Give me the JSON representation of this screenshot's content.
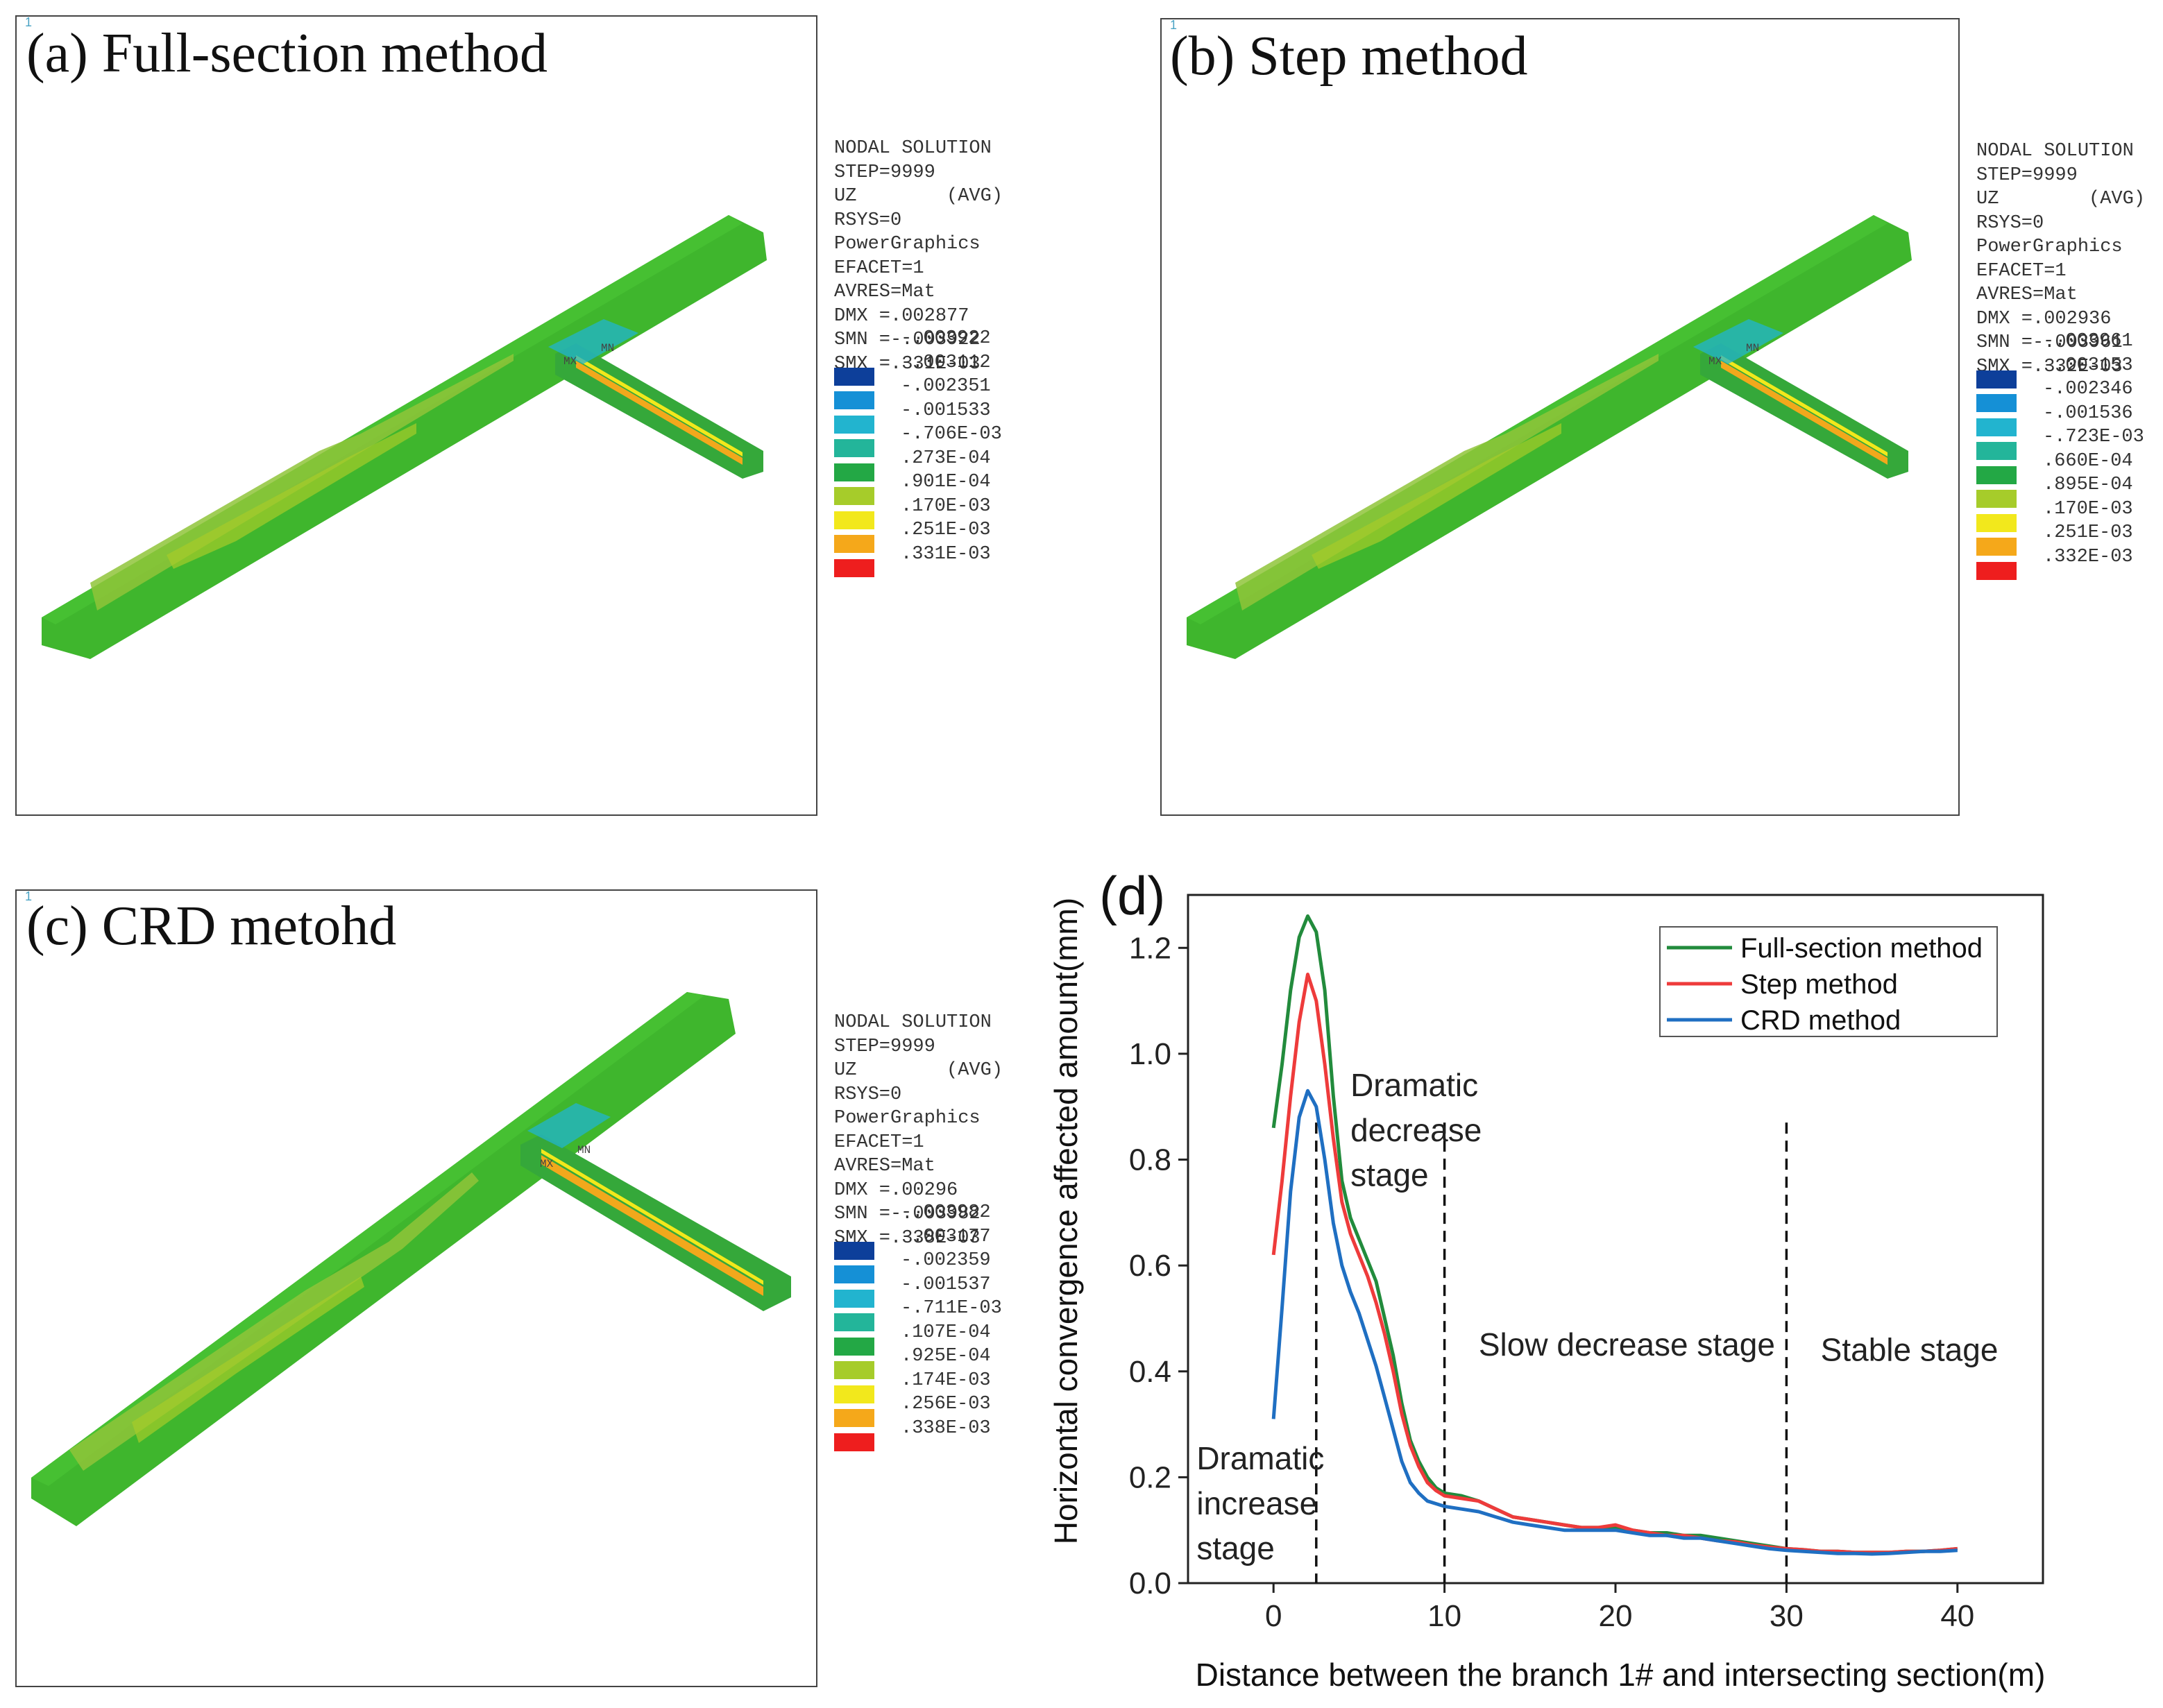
{
  "panels": [
    {
      "title": "(a) Full-section method",
      "legend": [
        "NODAL SOLUTION",
        "STEP=9999",
        "UZ        (AVG)",
        "RSYS=0",
        "PowerGraphics",
        "EFACET=1",
        "AVRES=Mat",
        "DMX =.002877",
        "SMN =-.003922",
        "SMX =.331E-03"
      ],
      "scale": [
        "-.003922",
        "-.003112",
        "-.002351",
        "-.001533",
        "-.706E-03",
        ".273E-04",
        ".901E-04",
        ".170E-03",
        ".251E-03",
        ".331E-03"
      ],
      "mx": "MX",
      "mn": "MN"
    },
    {
      "title": "(b) Step method",
      "legend": [
        "NODAL SOLUTION",
        "STEP=9999",
        "UZ        (AVG)",
        "RSYS=0",
        "PowerGraphics",
        "EFACET=1",
        "AVRES=Mat",
        "DMX =.002936",
        "SMN =-.003961",
        "SMX =.332E-03"
      ],
      "scale": [
        "-.003961",
        "-.003153",
        "-.002346",
        "-.001536",
        "-.723E-03",
        ".660E-04",
        ".895E-04",
        ".170E-03",
        ".251E-03",
        ".332E-03"
      ],
      "mx": "MX",
      "mn": "MN"
    },
    {
      "title": "(c) CRD metohd",
      "legend": [
        "NODAL SOLUTION",
        "STEP=9999",
        "UZ        (AVG)",
        "RSYS=0",
        "PowerGraphics",
        "EFACET=1",
        "AVRES=Mat",
        "DMX =.00296",
        "SMN =-.003982",
        "SMX =.338E-03"
      ],
      "scale": [
        "-.003982",
        "-.003177",
        "-.002359",
        "-.001537",
        "-.711E-03",
        ".107E-04",
        ".925E-04",
        ".174E-03",
        ".256E-03",
        ".338E-03"
      ],
      "mx": "MX",
      "mn": "MN"
    }
  ],
  "colors": {
    "contour": [
      "#0d3f9a",
      "#1590d6",
      "#22b4cf",
      "#23b59a",
      "#23a845",
      "#a6cc2a",
      "#f2e81c",
      "#f5a81a",
      "#ee1e1e"
    ],
    "model_main": "#3fb62d",
    "model_light": "#92c93e",
    "model_dark": "#2a8f23"
  },
  "corner_mark": "1",
  "chart_data": {
    "type": "line",
    "panel_label": "(d)",
    "xlabel": "Distance between the branch 1# and intersecting section(m)",
    "ylabel": "Horizontal convergence affected amount(mm)",
    "xlim": [
      -5,
      45
    ],
    "ylim": [
      0,
      1.3
    ],
    "xticks": [
      0,
      10,
      20,
      30,
      40
    ],
    "yticks": [
      0.0,
      0.2,
      0.4,
      0.6,
      0.8,
      1.0,
      1.2
    ],
    "xtick_labels": [
      "0",
      "10",
      "20",
      "30",
      "40"
    ],
    "ytick_labels": [
      "0.0",
      "0.2",
      "0.4",
      "0.6",
      "0.8",
      "1.0",
      "1.2"
    ],
    "series": [
      {
        "name": "Full-section method",
        "color": "#228b3c",
        "x": [
          0,
          0.5,
          1,
          1.5,
          2,
          2.5,
          3,
          3.5,
          4,
          4.5,
          5,
          5.5,
          6,
          6.5,
          7,
          7.5,
          8,
          8.5,
          9,
          9.5,
          10,
          11,
          12,
          13,
          14,
          15,
          16,
          17,
          18,
          19,
          20,
          21,
          22,
          23,
          24,
          25,
          26,
          27,
          28,
          29,
          30,
          31,
          32,
          33,
          34,
          35,
          36,
          37,
          38,
          39,
          40
        ],
        "y": [
          0.86,
          0.98,
          1.12,
          1.22,
          1.26,
          1.23,
          1.12,
          0.92,
          0.76,
          0.69,
          0.65,
          0.61,
          0.57,
          0.5,
          0.43,
          0.34,
          0.27,
          0.23,
          0.2,
          0.18,
          0.17,
          0.165,
          0.155,
          0.14,
          0.125,
          0.12,
          0.115,
          0.11,
          0.105,
          0.105,
          0.105,
          0.1,
          0.095,
          0.095,
          0.09,
          0.09,
          0.085,
          0.08,
          0.075,
          0.07,
          0.065,
          0.063,
          0.06,
          0.06,
          0.058,
          0.058,
          0.058,
          0.06,
          0.06,
          0.062,
          0.065
        ]
      },
      {
        "name": "Step method",
        "color": "#ee3b3b",
        "x": [
          0,
          0.5,
          1,
          1.5,
          2,
          2.5,
          3,
          3.5,
          4,
          4.5,
          5,
          5.5,
          6,
          6.5,
          7,
          7.5,
          8,
          8.5,
          9,
          9.5,
          10,
          11,
          12,
          13,
          14,
          15,
          16,
          17,
          18,
          19,
          20,
          21,
          22,
          23,
          24,
          25,
          26,
          27,
          28,
          29,
          30,
          31,
          32,
          33,
          34,
          35,
          36,
          37,
          38,
          39,
          40
        ],
        "y": [
          0.62,
          0.76,
          0.92,
          1.06,
          1.15,
          1.1,
          0.98,
          0.84,
          0.72,
          0.66,
          0.62,
          0.58,
          0.53,
          0.47,
          0.4,
          0.32,
          0.26,
          0.22,
          0.19,
          0.175,
          0.165,
          0.16,
          0.155,
          0.14,
          0.125,
          0.12,
          0.115,
          0.11,
          0.105,
          0.105,
          0.11,
          0.1,
          0.095,
          0.09,
          0.09,
          0.085,
          0.08,
          0.078,
          0.072,
          0.068,
          0.065,
          0.063,
          0.06,
          0.06,
          0.058,
          0.058,
          0.058,
          0.06,
          0.06,
          0.062,
          0.065
        ]
      },
      {
        "name": "CRD method",
        "color": "#1f6fc2",
        "x": [
          0,
          0.5,
          1,
          1.5,
          2,
          2.5,
          3,
          3.5,
          4,
          4.5,
          5,
          5.5,
          6,
          6.5,
          7,
          7.5,
          8,
          8.5,
          9,
          9.5,
          10,
          11,
          12,
          13,
          14,
          15,
          16,
          17,
          18,
          19,
          20,
          21,
          22,
          23,
          24,
          25,
          26,
          27,
          28,
          29,
          30,
          31,
          32,
          33,
          34,
          35,
          36,
          37,
          38,
          39,
          40
        ],
        "y": [
          0.31,
          0.52,
          0.74,
          0.88,
          0.93,
          0.9,
          0.8,
          0.68,
          0.6,
          0.55,
          0.51,
          0.46,
          0.41,
          0.35,
          0.29,
          0.23,
          0.19,
          0.17,
          0.155,
          0.15,
          0.145,
          0.14,
          0.135,
          0.125,
          0.115,
          0.11,
          0.105,
          0.1,
          0.1,
          0.1,
          0.1,
          0.095,
          0.09,
          0.09,
          0.085,
          0.085,
          0.08,
          0.075,
          0.07,
          0.065,
          0.062,
          0.06,
          0.058,
          0.056,
          0.056,
          0.055,
          0.056,
          0.058,
          0.06,
          0.06,
          0.062
        ]
      }
    ],
    "vlines": [
      2.5,
      10,
      30
    ],
    "annotations": [
      {
        "text": "Dramatic",
        "x": 4.5,
        "y": 0.92
      },
      {
        "text": "decrease",
        "x": 4.5,
        "y": 0.835
      },
      {
        "text": "stage",
        "x": 4.5,
        "y": 0.75
      },
      {
        "text": "Slow decrease stage",
        "x": 12,
        "y": 0.43
      },
      {
        "text": "Stable stage",
        "x": 32,
        "y": 0.42
      },
      {
        "text": "Dramatic",
        "x": -4.5,
        "y": 0.215
      },
      {
        "text": "increase",
        "x": -4.5,
        "y": 0.13
      },
      {
        "text": "stage",
        "x": -4.5,
        "y": 0.045
      }
    ],
    "legend_position": "top-right"
  }
}
